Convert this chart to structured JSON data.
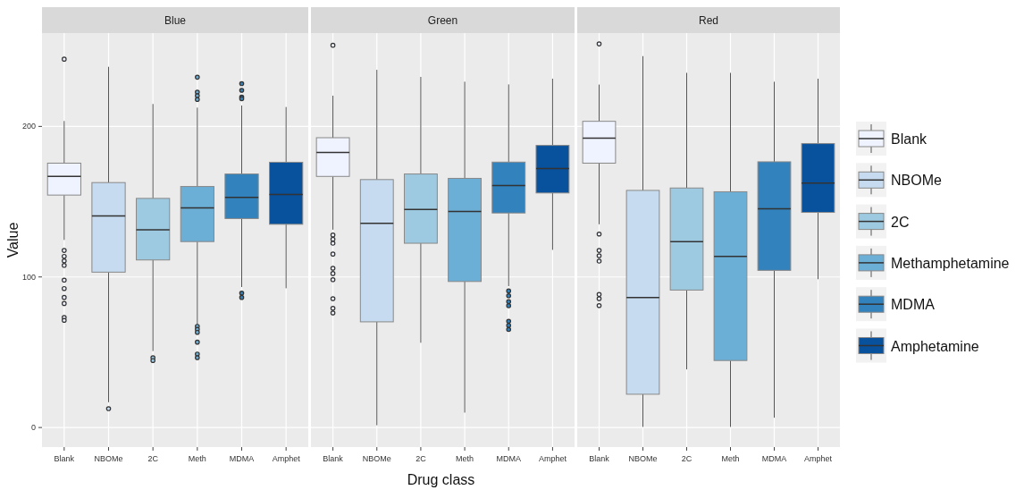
{
  "chart_data": [
    {
      "type": "box",
      "title": "Blue",
      "ylabel": "Value",
      "categories": [
        "Blank",
        "NBOMe",
        "2C",
        "Meth",
        "MDMA",
        "Amphet"
      ],
      "ylim": [
        -13,
        262
      ],
      "yticks": [
        0,
        100,
        200
      ],
      "grid": true,
      "series": [
        {
          "color": "#eff3ff",
          "x": [
            "Blank"
          ],
          "boxes": [
            {
              "low": 124.6,
              "q1": 154.4,
              "median": 166.8,
              "q3": 175.6,
              "high": 203.6,
              "outliers": [
                244.7,
                117.6,
                113.7,
                110.7,
                107.7,
                97.9,
                92.3,
                86.4,
                82.4,
                73.1,
                71.2
              ]
            }
          ]
        },
        {
          "color": "#c6dbef",
          "x": [
            "NBOMe"
          ],
          "boxes": [
            {
              "low": 16.8,
              "q1": 103.2,
              "median": 140.6,
              "q3": 162.7,
              "high": 239.6,
              "outliers": [
                12.5
              ]
            }
          ]
        },
        {
          "color": "#9ecae1",
          "x": [
            "2C"
          ],
          "boxes": [
            {
              "low": 50.8,
              "q1": 111.3,
              "median": 131.4,
              "q3": 152.2,
              "high": 214.9,
              "outliers": [
                46.4,
                44.5
              ]
            }
          ]
        },
        {
          "color": "#6baed6",
          "x": [
            "Meth"
          ],
          "boxes": [
            {
              "low": 68.2,
              "q1": 123.5,
              "median": 145.9,
              "q3": 160.1,
              "high": 212.5,
              "outliers": [
                232.7,
                222.8,
                220.4,
                217.9,
                67.2,
                65.2,
                63.2,
                56.7,
                48.8,
                46.4
              ]
            }
          ]
        },
        {
          "color": "#3182bd",
          "x": [
            "MDMA"
          ],
          "boxes": [
            {
              "low": 93.3,
              "q1": 138.8,
              "median": 152.8,
              "q3": 168.4,
              "high": 213.9,
              "outliers": [
                228.4,
                224,
                219.5,
                218.4,
                89.3,
                86.4
              ]
            }
          ]
        },
        {
          "color": "#08519c",
          "x": [
            "Amphet"
          ],
          "boxes": [
            {
              "low": 92.5,
              "q1": 135,
              "median": 154.8,
              "q3": 176.2,
              "high": 212.9
            }
          ]
        }
      ]
    },
    {
      "type": "box",
      "title": "Green",
      "xlabel": "Drug class",
      "categories": [
        "Blank",
        "NBOMe",
        "2C",
        "Meth",
        "MDMA",
        "Amphet"
      ],
      "ylim": [
        -13,
        262
      ],
      "yticks": [
        0,
        100,
        200
      ],
      "grid": true,
      "tick_labels": "x",
      "series": [
        {
          "color": "#eff3ff",
          "x": [
            "Blank"
          ],
          "boxes": [
            {
              "low": 131.4,
              "q1": 166.8,
              "median": 182.7,
              "q3": 192.5,
              "high": 220.4,
              "outliers": [
                253.9,
                127.9,
                125.1,
                122.4,
                115.2,
                105.8,
                102.3,
                98.2,
                85.6,
                79.2,
                76.1
              ]
            }
          ]
        },
        {
          "color": "#c6dbef",
          "x": [
            "NBOMe"
          ],
          "boxes": [
            {
              "low": 1.5,
              "q1": 70.2,
              "median": 135.6,
              "q3": 164.7,
              "high": 237.6
            }
          ]
        },
        {
          "color": "#9ecae1",
          "x": [
            "2C"
          ],
          "boxes": [
            {
              "low": 56.3,
              "q1": 122.4,
              "median": 144.9,
              "q3": 168.4,
              "high": 232.9
            }
          ]
        },
        {
          "color": "#6baed6",
          "x": [
            "Meth"
          ],
          "boxes": [
            {
              "low": 9.9,
              "q1": 97,
              "median": 143.5,
              "q3": 165.5,
              "high": 229.7
            }
          ]
        },
        {
          "color": "#3182bd",
          "x": [
            "MDMA"
          ],
          "boxes": [
            {
              "low": 93.9,
              "q1": 142.5,
              "median": 160.7,
              "q3": 176.3,
              "high": 227.9,
              "outliers": [
                90.7,
                87.5,
                83.6,
                80.9,
                70.6,
                67.8,
                65.1
              ]
            }
          ]
        },
        {
          "color": "#08519c",
          "x": [
            "Amphet"
          ],
          "boxes": [
            {
              "low": 118,
              "q1": 155.8,
              "median": 172,
              "q3": 187.4,
              "high": 231.7
            }
          ]
        }
      ]
    },
    {
      "type": "box",
      "title": "Red",
      "categories": [
        "Blank",
        "NBOMe",
        "2C",
        "Meth",
        "MDMA",
        "Amphet"
      ],
      "ylim": [
        -13,
        262
      ],
      "yticks": [
        0,
        100,
        200
      ],
      "grid": true,
      "tick_labels": "x",
      "legend": "right",
      "series": [
        {
          "name": "Blank",
          "color": "#eff3ff",
          "x": [
            "Blank"
          ],
          "boxes": [
            {
              "low": 135,
              "q1": 175.6,
              "median": 192.2,
              "q3": 203.4,
              "high": 227.8,
              "outliers": [
                254.8,
                128.5,
                117.6,
                114.1,
                110.5,
                88.4,
                85.6,
                81
              ]
            }
          ]
        },
        {
          "name": "NBOMe",
          "color": "#c6dbef",
          "x": [
            "NBOMe"
          ],
          "boxes": [
            {
              "low": 0.4,
              "q1": 22.1,
              "median": 86.4,
              "q3": 157.5,
              "high": 246.7
            }
          ]
        },
        {
          "name": "2C",
          "color": "#9ecae1",
          "x": [
            "2C"
          ],
          "boxes": [
            {
              "low": 38.6,
              "q1": 91.3,
              "median": 123.5,
              "q3": 159.1,
              "high": 235.6
            }
          ]
        },
        {
          "name": "Methamphetamine",
          "color": "#6baed6",
          "x": [
            "Meth"
          ],
          "boxes": [
            {
              "low": 0.4,
              "q1": 44.5,
              "median": 113.7,
              "q3": 156.6,
              "high": 235.6
            }
          ]
        },
        {
          "name": "MDMA",
          "color": "#3182bd",
          "x": [
            "MDMA"
          ],
          "boxes": [
            {
              "low": 6.5,
              "q1": 104.4,
              "median": 145.3,
              "q3": 176.5,
              "high": 229.7
            }
          ]
        },
        {
          "name": "Amphetamine",
          "color": "#08519c",
          "x": [
            "Amphet"
          ],
          "boxes": [
            {
              "low": 98.5,
              "q1": 142.9,
              "median": 162.3,
              "q3": 188.6,
              "high": 231.7
            }
          ]
        }
      ]
    }
  ]
}
